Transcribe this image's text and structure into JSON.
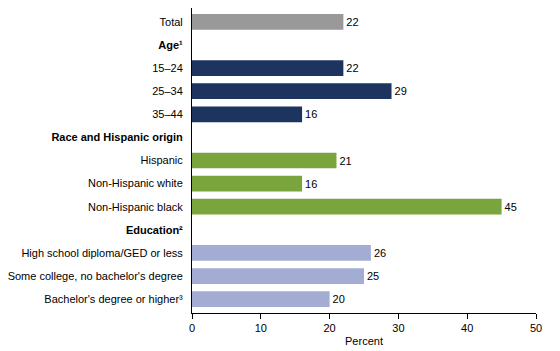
{
  "chart_data": {
    "type": "bar",
    "orientation": "horizontal",
    "categories": [
      "Total",
      "Age¹",
      "15–24",
      "25–34",
      "35–44",
      "Race and Hispanic origin",
      "Hispanic",
      "Non-Hispanic white",
      "Non-Hispanic black",
      "Education²",
      "High school diploma/GED or less",
      "Some college, no bachelor's degree",
      "Bachelor's degree or higher³"
    ],
    "values": [
      22,
      null,
      22,
      29,
      16,
      null,
      21,
      16,
      45,
      null,
      26,
      25,
      20
    ],
    "colors": [
      "#999999",
      null,
      "#1d3461",
      "#1d3461",
      "#1d3461",
      null,
      "#7aa53c",
      "#7aa53c",
      "#7aa53c",
      null,
      "#a3acd2",
      "#a3acd2",
      "#a3acd2"
    ],
    "xlim": [
      0,
      50
    ],
    "xticks": [
      0,
      10,
      20,
      30,
      40,
      50
    ],
    "x_label": "Percent",
    "data_labels": true,
    "grid": false
  }
}
